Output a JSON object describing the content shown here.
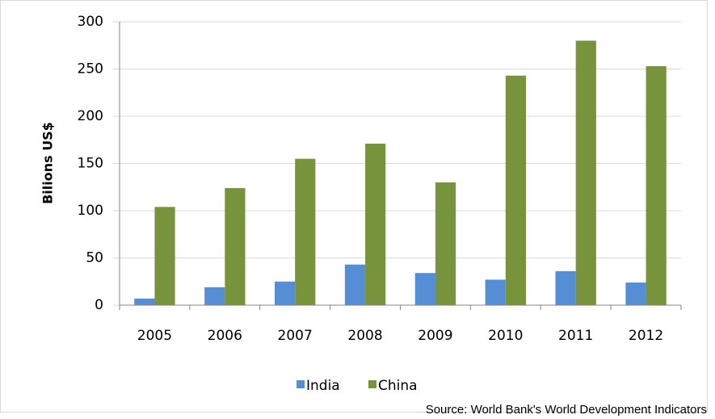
{
  "chart_data": {
    "type": "bar",
    "y_label": "Bilions US$",
    "categories": [
      "2005",
      "2006",
      "2007",
      "2008",
      "2009",
      "2010",
      "2011",
      "2012"
    ],
    "series": [
      {
        "name": "India",
        "color": "#558ed5",
        "values": [
          7,
          19,
          25,
          43,
          34,
          27,
          36,
          24
        ]
      },
      {
        "name": "China",
        "color": "#77933c",
        "values": [
          104,
          124,
          155,
          171,
          130,
          243,
          280,
          253
        ]
      }
    ],
    "ylim": [
      0,
      300
    ],
    "yticks": [
      0,
      50,
      100,
      150,
      200,
      250,
      300
    ],
    "grid": true,
    "legend": "bottom",
    "source": "Source: World Bank's World Development Indicators"
  }
}
